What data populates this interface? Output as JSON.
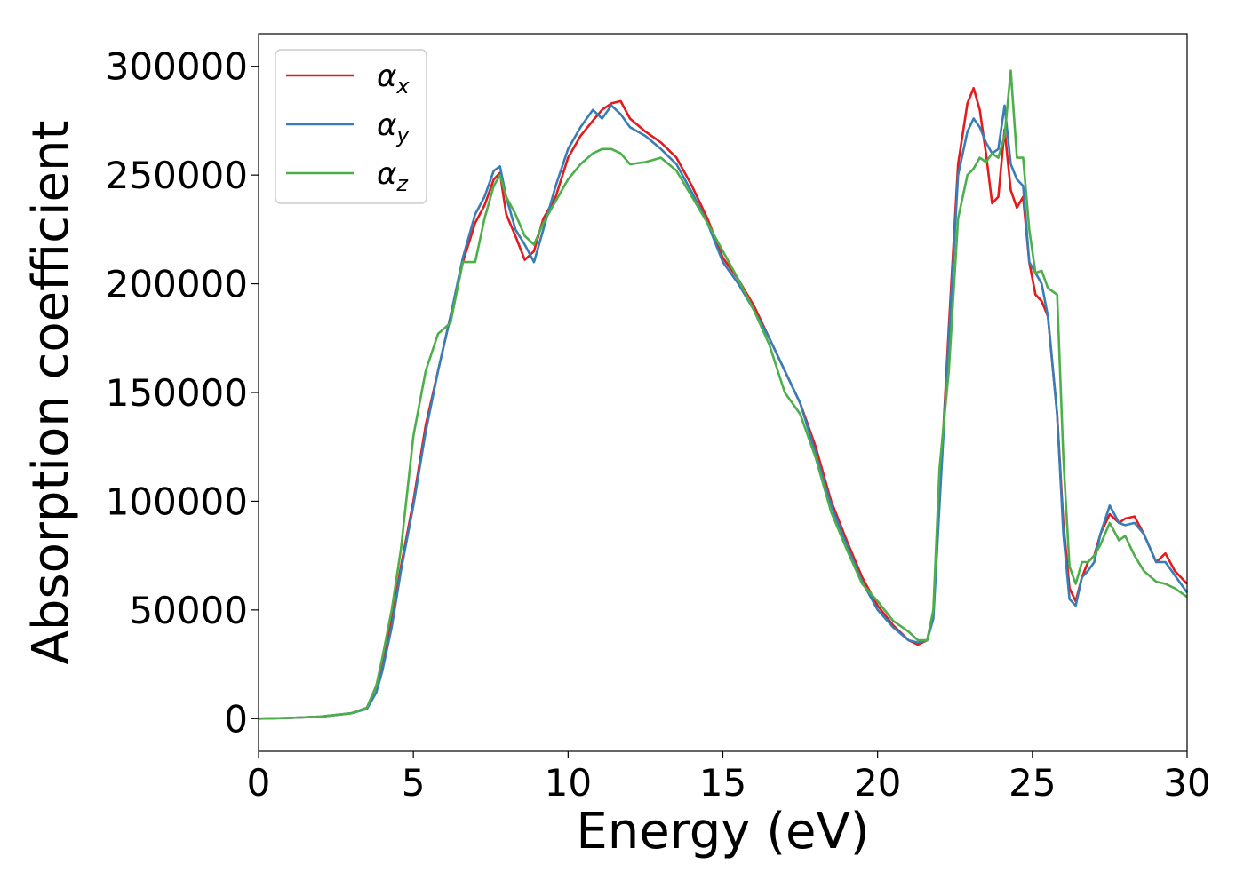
{
  "chart_data": {
    "type": "line",
    "title": "",
    "xlabel": "Energy (eV)",
    "ylabel": "Absorption coefficient",
    "xlim": [
      0,
      30
    ],
    "ylim": [
      -15000,
      315000
    ],
    "xticks": [
      0,
      5,
      10,
      15,
      20,
      25,
      30
    ],
    "yticks": [
      0,
      50000,
      100000,
      150000,
      200000,
      250000,
      300000
    ],
    "xtick_labels": [
      "0",
      "5",
      "10",
      "15",
      "20",
      "25",
      "30"
    ],
    "ytick_labels": [
      "0",
      "50000",
      "100000",
      "150000",
      "200000",
      "250000",
      "300000"
    ],
    "grid": false,
    "legend_position": "top-left",
    "series": [
      {
        "name": "α",
        "subscript": "x",
        "color": "#e41a1c",
        "x": [
          0,
          1,
          2,
          3,
          3.5,
          3.8,
          4,
          4.3,
          4.6,
          5,
          5.4,
          5.8,
          6.2,
          6.6,
          7,
          7.3,
          7.6,
          7.8,
          8,
          8.3,
          8.6,
          8.9,
          9.2,
          9.6,
          10,
          10.4,
          10.8,
          11.1,
          11.4,
          11.7,
          12,
          12.5,
          13,
          13.5,
          14,
          14.5,
          15,
          15.5,
          16,
          16.5,
          17,
          17.5,
          18,
          18.5,
          19,
          19.5,
          20,
          20.5,
          21,
          21.3,
          21.6,
          21.8,
          22,
          22.3,
          22.6,
          22.9,
          23.1,
          23.3,
          23.5,
          23.7,
          23.9,
          24.1,
          24.3,
          24.5,
          24.7,
          24.9,
          25.1,
          25.3,
          25.5,
          25.8,
          26,
          26.2,
          26.4,
          26.6,
          26.8,
          27,
          27.2,
          27.5,
          27.8,
          28,
          28.3,
          28.6,
          29,
          29.3,
          29.6,
          30
        ],
        "y": [
          0,
          300,
          900,
          2500,
          5000,
          15000,
          25000,
          45000,
          70000,
          100000,
          135000,
          160000,
          185000,
          210000,
          228000,
          236000,
          248000,
          251000,
          232000,
          222000,
          211000,
          215000,
          230000,
          240000,
          258000,
          268000,
          275000,
          280000,
          283000,
          284000,
          276000,
          270000,
          265000,
          258000,
          245000,
          230000,
          212000,
          202000,
          190000,
          175000,
          160000,
          145000,
          125000,
          100000,
          82000,
          65000,
          52000,
          43000,
          36000,
          34000,
          36000,
          48000,
          100000,
          180000,
          255000,
          283000,
          290000,
          280000,
          260000,
          237000,
          240000,
          271000,
          243000,
          235000,
          240000,
          210000,
          195000,
          192000,
          185000,
          140000,
          90000,
          60000,
          54000,
          65000,
          72000,
          75000,
          85000,
          94000,
          90000,
          92000,
          93000,
          85000,
          72000,
          76000,
          68000,
          62000
        ]
      },
      {
        "name": "α",
        "subscript": "y",
        "color": "#377eb8",
        "x": [
          0,
          1,
          2,
          3,
          3.5,
          3.8,
          4,
          4.3,
          4.6,
          5,
          5.4,
          5.8,
          6.2,
          6.6,
          7,
          7.3,
          7.6,
          7.8,
          8,
          8.3,
          8.6,
          8.9,
          9.2,
          9.6,
          10,
          10.4,
          10.8,
          11.1,
          11.4,
          11.7,
          12,
          12.5,
          13,
          13.5,
          14,
          14.5,
          15,
          15.5,
          16,
          16.5,
          17,
          17.5,
          18,
          18.5,
          19,
          19.5,
          20,
          20.5,
          21,
          21.3,
          21.6,
          21.8,
          22,
          22.3,
          22.6,
          22.9,
          23.1,
          23.3,
          23.5,
          23.7,
          23.9,
          24.1,
          24.3,
          24.5,
          24.7,
          24.9,
          25.1,
          25.3,
          25.5,
          25.8,
          26,
          26.2,
          26.4,
          26.6,
          26.8,
          27,
          27.2,
          27.5,
          27.8,
          28,
          28.3,
          28.6,
          29,
          29.3,
          29.6,
          30
        ],
        "y": [
          0,
          300,
          900,
          2500,
          4500,
          12000,
          22000,
          42000,
          68000,
          98000,
          132000,
          160000,
          185000,
          212000,
          232000,
          240000,
          252000,
          254000,
          240000,
          225000,
          218000,
          210000,
          225000,
          245000,
          262000,
          272000,
          280000,
          276000,
          282000,
          278000,
          272000,
          268000,
          262000,
          255000,
          242000,
          228000,
          210000,
          200000,
          188000,
          175000,
          160000,
          145000,
          122000,
          98000,
          80000,
          63000,
          50000,
          42000,
          36000,
          35000,
          36000,
          46000,
          98000,
          175000,
          250000,
          270000,
          276000,
          272000,
          265000,
          260000,
          262000,
          282000,
          255000,
          248000,
          245000,
          210000,
          205000,
          200000,
          185000,
          140000,
          85000,
          55000,
          52000,
          65000,
          68000,
          72000,
          85000,
          98000,
          90000,
          89000,
          90000,
          85000,
          72000,
          72000,
          66000,
          58000
        ]
      },
      {
        "name": "α",
        "subscript": "z",
        "color": "#4daf4a",
        "x": [
          0,
          1,
          2,
          3,
          3.5,
          3.8,
          4,
          4.3,
          4.6,
          5,
          5.4,
          5.8,
          6.2,
          6.6,
          7,
          7.3,
          7.6,
          7.8,
          8,
          8.3,
          8.6,
          8.9,
          9.2,
          9.6,
          10,
          10.4,
          10.8,
          11.1,
          11.4,
          11.7,
          12,
          12.5,
          13,
          13.5,
          14,
          14.5,
          15,
          15.5,
          16,
          16.5,
          17,
          17.5,
          18,
          18.5,
          19,
          19.5,
          20,
          20.5,
          21,
          21.3,
          21.6,
          21.8,
          22,
          22.3,
          22.6,
          22.9,
          23.1,
          23.3,
          23.5,
          23.7,
          23.9,
          24.1,
          24.3,
          24.5,
          24.7,
          24.9,
          25.1,
          25.3,
          25.5,
          25.8,
          26,
          26.2,
          26.4,
          26.6,
          26.8,
          27,
          27.2,
          27.5,
          27.8,
          28,
          28.3,
          28.6,
          29,
          29.3,
          29.6,
          30
        ],
        "y": [
          0,
          300,
          900,
          2500,
          5000,
          15000,
          28000,
          50000,
          78000,
          130000,
          160000,
          177000,
          182000,
          210000,
          210000,
          230000,
          245000,
          250000,
          240000,
          232000,
          222000,
          218000,
          228000,
          238000,
          248000,
          255000,
          260000,
          262000,
          262000,
          260000,
          255000,
          256000,
          258000,
          252000,
          240000,
          228000,
          215000,
          202000,
          188000,
          172000,
          150000,
          140000,
          120000,
          95000,
          78000,
          62000,
          54000,
          45000,
          40000,
          36000,
          36000,
          50000,
          115000,
          160000,
          230000,
          250000,
          253000,
          258000,
          256000,
          260000,
          258000,
          268000,
          298000,
          258000,
          258000,
          225000,
          205000,
          206000,
          198000,
          195000,
          120000,
          70000,
          62000,
          72000,
          72000,
          75000,
          80000,
          90000,
          82000,
          84000,
          75000,
          68000,
          63000,
          62000,
          60000,
          56000
        ]
      }
    ]
  }
}
